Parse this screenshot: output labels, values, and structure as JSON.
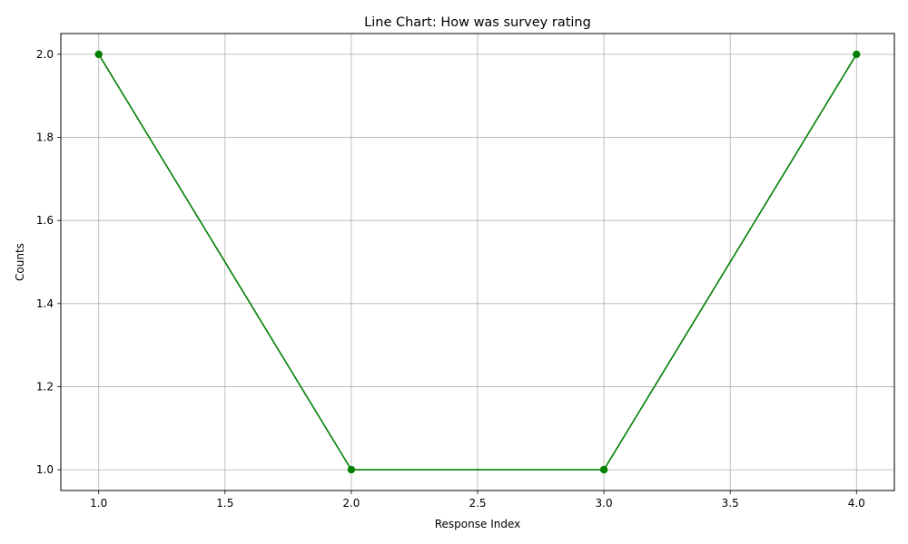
{
  "chart_data": {
    "type": "line",
    "title": "Line Chart: How was survey rating",
    "xlabel": "Response Index",
    "ylabel": "Counts",
    "x": [
      1,
      2,
      3,
      4
    ],
    "series": [
      {
        "values": [
          2,
          1,
          1,
          2
        ]
      }
    ],
    "xlim": [
      0.85,
      4.15
    ],
    "ylim": [
      0.95,
      2.05
    ],
    "xticks": [
      1.0,
      1.5,
      2.0,
      2.5,
      3.0,
      3.5,
      4.0
    ],
    "yticks": [
      1.0,
      1.2,
      1.4,
      1.6,
      1.8,
      2.0
    ],
    "xtick_labels": [
      "1.0",
      "1.5",
      "2.0",
      "2.5",
      "3.0",
      "3.5",
      "4.0"
    ],
    "ytick_labels": [
      "1.0",
      "1.2",
      "1.4",
      "1.6",
      "1.8",
      "2.0"
    ],
    "grid": true,
    "line_color": "#008000",
    "grid_color": "#b0b0b0",
    "marker": "circle"
  }
}
